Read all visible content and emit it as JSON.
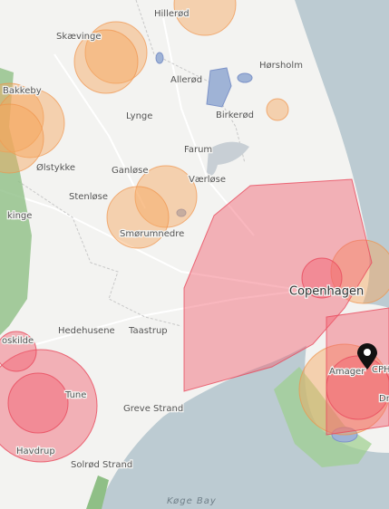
{
  "map": {
    "labels": [
      {
        "text": "Hillerød"
      },
      {
        "text": "Skævinge"
      },
      {
        "text": "Hørsholm"
      },
      {
        "text": "Allerød"
      },
      {
        "text": "Lynge"
      },
      {
        "text": "Birkerød"
      },
      {
        "text": "Bakkeby"
      },
      {
        "text": "Farum"
      },
      {
        "text": "Ølstykke"
      },
      {
        "text": "Ganløse"
      },
      {
        "text": "Værløse"
      },
      {
        "text": "Stenløse"
      },
      {
        "text": "Smørumnedre"
      },
      {
        "text": "Copenhagen"
      },
      {
        "text": "Hedehusene"
      },
      {
        "text": "Taastrup"
      },
      {
        "text": "oskilde"
      },
      {
        "text": "kinge"
      },
      {
        "text": "Tune"
      },
      {
        "text": "Greve Strand"
      },
      {
        "text": "Havdrup"
      },
      {
        "text": "Solrød Strand"
      },
      {
        "text": "Køge Bay"
      },
      {
        "text": "Amager"
      },
      {
        "text": "CPH"
      },
      {
        "text": "Dr"
      }
    ]
  }
}
